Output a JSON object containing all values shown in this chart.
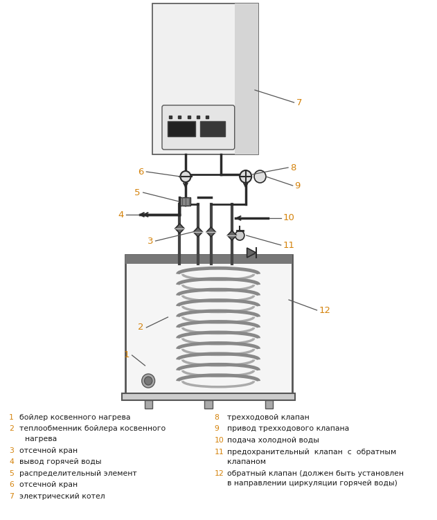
{
  "bg_color": "#ffffff",
  "label_color": "#d4820a",
  "line_color": "#2a2a2a",
  "pipe_color": "#444444",
  "coil_color": "#888888",
  "legend_left": [
    [
      "1",
      "бойлер косвенного нагрева"
    ],
    [
      "2",
      "теплообменник бойлера косвенного",
      "нагрева"
    ],
    [
      "3",
      "отсечной кран"
    ],
    [
      "4",
      "вывод горячей воды"
    ],
    [
      "5",
      "распределительный элемент"
    ],
    [
      "6",
      "отсечной кран"
    ],
    [
      "7",
      "электрический котел"
    ]
  ],
  "legend_right": [
    [
      "8",
      "трехходовой клапан"
    ],
    [
      "9",
      "привод трехходового клапана"
    ],
    [
      "10",
      "подача холодной воды"
    ],
    [
      "11",
      "предохранительный  клапан  с  обратным",
      "клапаном"
    ],
    [
      "12",
      "обратный клапан (должен быть установлен",
      "в направлении циркуляции горячей воды)"
    ]
  ]
}
